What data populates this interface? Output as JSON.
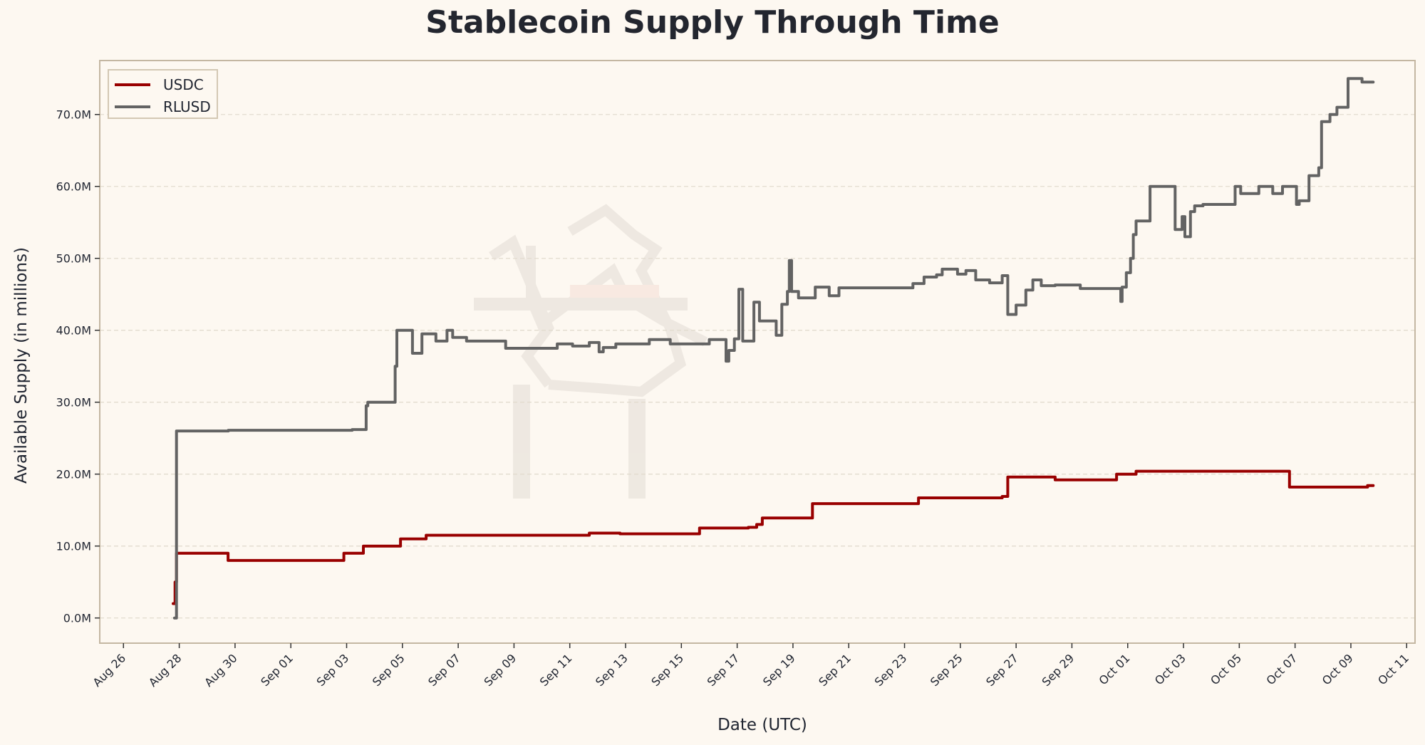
{
  "chart_data": {
    "type": "line",
    "title": "Stablecoin Supply Through Time",
    "xlabel": "Date (UTC)",
    "ylabel": "Available Supply (in millions)",
    "x_unit": "days since Aug 26 00:00 UTC",
    "xlim": [
      -0.85,
      46.3
    ],
    "ylim": [
      -3.5,
      77.5
    ],
    "grid": "horizontal dashed",
    "legend_position": "top-left",
    "y_ticks": [
      {
        "value": 0,
        "label": "0.0M"
      },
      {
        "value": 10,
        "label": "10.0M"
      },
      {
        "value": 20,
        "label": "20.0M"
      },
      {
        "value": 30,
        "label": "30.0M"
      },
      {
        "value": 40,
        "label": "40.0M"
      },
      {
        "value": 50,
        "label": "50.0M"
      },
      {
        "value": 60,
        "label": "60.0M"
      },
      {
        "value": 70,
        "label": "70.0M"
      }
    ],
    "x_ticks": [
      {
        "value": 0,
        "label": "Aug 26"
      },
      {
        "value": 2,
        "label": "Aug 28"
      },
      {
        "value": 4,
        "label": "Aug 30"
      },
      {
        "value": 6,
        "label": "Sep 01"
      },
      {
        "value": 8,
        "label": "Sep 03"
      },
      {
        "value": 10,
        "label": "Sep 05"
      },
      {
        "value": 12,
        "label": "Sep 07"
      },
      {
        "value": 14,
        "label": "Sep 09"
      },
      {
        "value": 16,
        "label": "Sep 11"
      },
      {
        "value": 18,
        "label": "Sep 13"
      },
      {
        "value": 20,
        "label": "Sep 15"
      },
      {
        "value": 22,
        "label": "Sep 17"
      },
      {
        "value": 24,
        "label": "Sep 19"
      },
      {
        "value": 26,
        "label": "Sep 21"
      },
      {
        "value": 28,
        "label": "Sep 23"
      },
      {
        "value": 30,
        "label": "Sep 25"
      },
      {
        "value": 32,
        "label": "Sep 27"
      },
      {
        "value": 34,
        "label": "Sep 29"
      },
      {
        "value": 36,
        "label": "Oct 01"
      },
      {
        "value": 38,
        "label": "Oct 03"
      },
      {
        "value": 40,
        "label": "Oct 05"
      },
      {
        "value": 42,
        "label": "Oct 07"
      },
      {
        "value": 44,
        "label": "Oct 09"
      },
      {
        "value": 46,
        "label": "Oct 11"
      }
    ],
    "series": [
      {
        "name": "USDC",
        "color": "#990000",
        "points": [
          [
            1.78,
            2.0
          ],
          [
            1.85,
            5.0
          ],
          [
            1.9,
            9.0
          ],
          [
            3.75,
            8.0
          ],
          [
            6.8,
            8.0
          ],
          [
            7.9,
            9.0
          ],
          [
            8.6,
            10.0
          ],
          [
            9.93,
            11.0
          ],
          [
            10.85,
            11.5
          ],
          [
            16.7,
            11.8
          ],
          [
            17.8,
            11.7
          ],
          [
            20.65,
            12.5
          ],
          [
            22.4,
            12.6
          ],
          [
            22.7,
            13.0
          ],
          [
            22.9,
            13.9
          ],
          [
            24.7,
            15.9
          ],
          [
            28.5,
            16.7
          ],
          [
            31.5,
            16.9
          ],
          [
            31.7,
            19.6
          ],
          [
            33.4,
            19.2
          ],
          [
            35.6,
            20.0
          ],
          [
            36.3,
            20.4
          ],
          [
            41.8,
            18.2
          ],
          [
            44.6,
            18.4
          ],
          [
            44.8,
            18.4
          ]
        ]
      },
      {
        "name": "RLUSD",
        "color": "#636363",
        "points": [
          [
            1.83,
            0.0
          ],
          [
            1.9,
            26.0
          ],
          [
            3.76,
            26.1
          ],
          [
            8.2,
            26.2
          ],
          [
            8.7,
            29.5
          ],
          [
            8.76,
            30.0
          ],
          [
            9.74,
            35.0
          ],
          [
            9.8,
            40.0
          ],
          [
            10.36,
            36.8
          ],
          [
            10.7,
            39.5
          ],
          [
            11.2,
            38.5
          ],
          [
            11.6,
            40.0
          ],
          [
            11.8,
            39.0
          ],
          [
            12.3,
            38.5
          ],
          [
            13.7,
            37.5
          ],
          [
            15.55,
            38.1
          ],
          [
            16.1,
            37.8
          ],
          [
            16.7,
            38.3
          ],
          [
            17.05,
            37.0
          ],
          [
            17.2,
            37.6
          ],
          [
            17.65,
            38.1
          ],
          [
            18.85,
            38.7
          ],
          [
            19.6,
            38.1
          ],
          [
            21.0,
            38.7
          ],
          [
            21.6,
            35.7
          ],
          [
            21.7,
            37.2
          ],
          [
            21.9,
            38.8
          ],
          [
            22.06,
            45.7
          ],
          [
            22.2,
            38.5
          ],
          [
            22.6,
            43.9
          ],
          [
            22.8,
            41.3
          ],
          [
            23.4,
            39.3
          ],
          [
            23.6,
            43.6
          ],
          [
            23.8,
            45.4
          ],
          [
            23.87,
            49.7
          ],
          [
            23.95,
            45.4
          ],
          [
            24.2,
            44.5
          ],
          [
            24.8,
            46.0
          ],
          [
            25.3,
            44.8
          ],
          [
            25.65,
            45.9
          ],
          [
            28.3,
            46.5
          ],
          [
            28.7,
            47.4
          ],
          [
            29.15,
            47.7
          ],
          [
            29.35,
            48.5
          ],
          [
            29.9,
            47.8
          ],
          [
            30.2,
            48.3
          ],
          [
            30.55,
            47.0
          ],
          [
            31.05,
            46.6
          ],
          [
            31.5,
            47.6
          ],
          [
            31.7,
            42.2
          ],
          [
            32.0,
            43.5
          ],
          [
            32.35,
            45.6
          ],
          [
            32.6,
            47.0
          ],
          [
            32.9,
            46.2
          ],
          [
            33.4,
            46.3
          ],
          [
            34.3,
            45.8
          ],
          [
            35.7,
            45.8
          ],
          [
            35.75,
            44.0
          ],
          [
            35.8,
            46.0
          ],
          [
            35.95,
            48.0
          ],
          [
            36.1,
            50.0
          ],
          [
            36.2,
            53.3
          ],
          [
            36.3,
            55.2
          ],
          [
            36.8,
            60.0
          ],
          [
            37.7,
            54.0
          ],
          [
            37.95,
            55.8
          ],
          [
            38.05,
            53.0
          ],
          [
            38.25,
            56.5
          ],
          [
            38.4,
            57.3
          ],
          [
            38.7,
            57.5
          ],
          [
            39.85,
            60.0
          ],
          [
            40.05,
            59.0
          ],
          [
            40.7,
            60.0
          ],
          [
            41.2,
            59.0
          ],
          [
            41.55,
            60.0
          ],
          [
            42.05,
            57.5
          ],
          [
            42.15,
            58.0
          ],
          [
            42.5,
            61.5
          ],
          [
            42.85,
            62.6
          ],
          [
            42.95,
            69.0
          ],
          [
            43.25,
            70.0
          ],
          [
            43.5,
            71.0
          ],
          [
            43.9,
            75.0
          ],
          [
            44.4,
            74.5
          ],
          [
            44.8,
            74.5
          ]
        ]
      }
    ]
  }
}
